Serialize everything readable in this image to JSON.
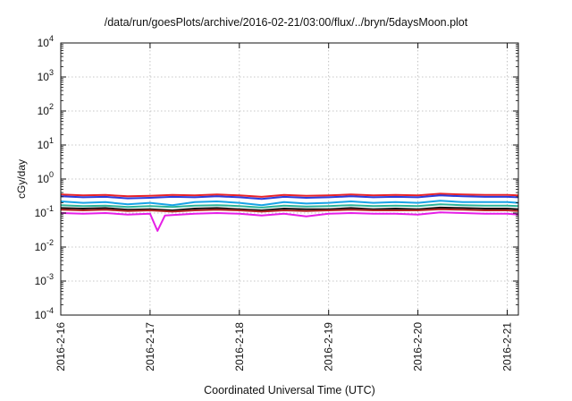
{
  "chart_data": {
    "type": "line",
    "title": "/data/run/goesPlots/archive/2016-02-21/03:00/flux/../bryn/5daysMoon.plot",
    "xlabel": "Coordinated Universal Time (UTC)",
    "ylabel": "cGy/day",
    "y_scale": "log",
    "ylim": [
      0.0001,
      10000
    ],
    "xlim": [
      "2016-02-16 00:00",
      "2016-02-21 03:00"
    ],
    "grid": true,
    "x_ticks": [
      "2016-2-16",
      "2016-2-17",
      "2016-2-18",
      "2016-2-19",
      "2016-2-20",
      "2016-2-21"
    ],
    "y_ticks": [
      {
        "value": 0.0001,
        "base": "10",
        "exp": "-4"
      },
      {
        "value": 0.001,
        "base": "10",
        "exp": "-3"
      },
      {
        "value": 0.01,
        "base": "10",
        "exp": "-2"
      },
      {
        "value": 0.1,
        "base": "10",
        "exp": "-1"
      },
      {
        "value": 1,
        "base": "10",
        "exp": "0"
      },
      {
        "value": 10,
        "base": "10",
        "exp": "1"
      },
      {
        "value": 100,
        "base": "10",
        "exp": "2"
      },
      {
        "value": 1000,
        "base": "10",
        "exp": "3"
      },
      {
        "value": 10000,
        "base": "10",
        "exp": "4"
      }
    ],
    "series": [
      {
        "color": "#e8232a",
        "values": [
          [
            "2016-02-16 00:00",
            0.35
          ],
          [
            "2016-02-16 06:00",
            0.33
          ],
          [
            "2016-02-16 12:00",
            0.34
          ],
          [
            "2016-02-16 18:00",
            0.31
          ],
          [
            "2016-02-17 00:00",
            0.32
          ],
          [
            "2016-02-17 06:00",
            0.34
          ],
          [
            "2016-02-17 12:00",
            0.33
          ],
          [
            "2016-02-17 18:00",
            0.35
          ],
          [
            "2016-02-18 00:00",
            0.33
          ],
          [
            "2016-02-18 06:00",
            0.3
          ],
          [
            "2016-02-18 12:00",
            0.34
          ],
          [
            "2016-02-18 18:00",
            0.32
          ],
          [
            "2016-02-19 00:00",
            0.33
          ],
          [
            "2016-02-19 06:00",
            0.35
          ],
          [
            "2016-02-19 12:00",
            0.33
          ],
          [
            "2016-02-19 18:00",
            0.34
          ],
          [
            "2016-02-20 00:00",
            0.33
          ],
          [
            "2016-02-20 06:00",
            0.37
          ],
          [
            "2016-02-20 12:00",
            0.35
          ],
          [
            "2016-02-20 18:00",
            0.34
          ],
          [
            "2016-02-21 00:00",
            0.34
          ],
          [
            "2016-02-21 03:00",
            0.33
          ]
        ]
      },
      {
        "color": "#2b3cdc",
        "values": [
          [
            "2016-02-16 00:00",
            0.31
          ],
          [
            "2016-02-16 06:00",
            0.29
          ],
          [
            "2016-02-16 12:00",
            0.3
          ],
          [
            "2016-02-16 18:00",
            0.27
          ],
          [
            "2016-02-17 00:00",
            0.28
          ],
          [
            "2016-02-17 06:00",
            0.3
          ],
          [
            "2016-02-17 12:00",
            0.29
          ],
          [
            "2016-02-17 18:00",
            0.31
          ],
          [
            "2016-02-18 00:00",
            0.29
          ],
          [
            "2016-02-18 06:00",
            0.26
          ],
          [
            "2016-02-18 12:00",
            0.3
          ],
          [
            "2016-02-18 18:00",
            0.28
          ],
          [
            "2016-02-19 00:00",
            0.29
          ],
          [
            "2016-02-19 06:00",
            0.31
          ],
          [
            "2016-02-19 12:00",
            0.29
          ],
          [
            "2016-02-19 18:00",
            0.3
          ],
          [
            "2016-02-20 00:00",
            0.29
          ],
          [
            "2016-02-20 06:00",
            0.33
          ],
          [
            "2016-02-20 12:00",
            0.31
          ],
          [
            "2016-02-20 18:00",
            0.3
          ],
          [
            "2016-02-21 00:00",
            0.3
          ],
          [
            "2016-02-21 03:00",
            0.29
          ]
        ]
      },
      {
        "color": "#19a3e6",
        "values": [
          [
            "2016-02-16 00:00",
            0.22
          ],
          [
            "2016-02-16 06:00",
            0.2
          ],
          [
            "2016-02-16 12:00",
            0.21
          ],
          [
            "2016-02-16 18:00",
            0.18
          ],
          [
            "2016-02-17 00:00",
            0.2
          ],
          [
            "2016-02-17 06:00",
            0.17
          ],
          [
            "2016-02-17 12:00",
            0.21
          ],
          [
            "2016-02-17 18:00",
            0.22
          ],
          [
            "2016-02-18 00:00",
            0.2
          ],
          [
            "2016-02-18 06:00",
            0.17
          ],
          [
            "2016-02-18 12:00",
            0.21
          ],
          [
            "2016-02-18 18:00",
            0.19
          ],
          [
            "2016-02-19 00:00",
            0.2
          ],
          [
            "2016-02-19 06:00",
            0.22
          ],
          [
            "2016-02-19 12:00",
            0.2
          ],
          [
            "2016-02-19 18:00",
            0.21
          ],
          [
            "2016-02-20 00:00",
            0.2
          ],
          [
            "2016-02-20 06:00",
            0.23
          ],
          [
            "2016-02-20 12:00",
            0.21
          ],
          [
            "2016-02-20 18:00",
            0.21
          ],
          [
            "2016-02-21 00:00",
            0.21
          ],
          [
            "2016-02-21 03:00",
            0.2
          ]
        ]
      },
      {
        "color": "#2bb39a",
        "values": [
          [
            "2016-02-16 00:00",
            0.17
          ],
          [
            "2016-02-16 06:00",
            0.16
          ],
          [
            "2016-02-16 12:00",
            0.165
          ],
          [
            "2016-02-16 18:00",
            0.15
          ],
          [
            "2016-02-17 00:00",
            0.16
          ],
          [
            "2016-02-17 06:00",
            0.15
          ],
          [
            "2016-02-17 12:00",
            0.165
          ],
          [
            "2016-02-17 18:00",
            0.17
          ],
          [
            "2016-02-18 00:00",
            0.16
          ],
          [
            "2016-02-18 06:00",
            0.145
          ],
          [
            "2016-02-18 12:00",
            0.165
          ],
          [
            "2016-02-18 18:00",
            0.155
          ],
          [
            "2016-02-19 00:00",
            0.16
          ],
          [
            "2016-02-19 06:00",
            0.17
          ],
          [
            "2016-02-19 12:00",
            0.16
          ],
          [
            "2016-02-19 18:00",
            0.165
          ],
          [
            "2016-02-20 00:00",
            0.16
          ],
          [
            "2016-02-20 06:00",
            0.18
          ],
          [
            "2016-02-20 12:00",
            0.17
          ],
          [
            "2016-02-20 18:00",
            0.165
          ],
          [
            "2016-02-21 00:00",
            0.165
          ],
          [
            "2016-02-21 03:00",
            0.16
          ]
        ]
      },
      {
        "color": "#111111",
        "values": [
          [
            "2016-02-16 00:00",
            0.14
          ],
          [
            "2016-02-16 06:00",
            0.135
          ],
          [
            "2016-02-16 12:00",
            0.14
          ],
          [
            "2016-02-16 18:00",
            0.125
          ],
          [
            "2016-02-17 00:00",
            0.13
          ],
          [
            "2016-02-17 06:00",
            0.12
          ],
          [
            "2016-02-17 12:00",
            0.135
          ],
          [
            "2016-02-17 18:00",
            0.14
          ],
          [
            "2016-02-18 00:00",
            0.13
          ],
          [
            "2016-02-18 06:00",
            0.12
          ],
          [
            "2016-02-18 12:00",
            0.135
          ],
          [
            "2016-02-18 18:00",
            0.13
          ],
          [
            "2016-02-19 00:00",
            0.13
          ],
          [
            "2016-02-19 06:00",
            0.14
          ],
          [
            "2016-02-19 12:00",
            0.13
          ],
          [
            "2016-02-19 18:00",
            0.135
          ],
          [
            "2016-02-20 00:00",
            0.13
          ],
          [
            "2016-02-20 06:00",
            0.145
          ],
          [
            "2016-02-20 12:00",
            0.14
          ],
          [
            "2016-02-20 18:00",
            0.135
          ],
          [
            "2016-02-21 00:00",
            0.135
          ],
          [
            "2016-02-21 03:00",
            0.13
          ]
        ]
      },
      {
        "color": "#b52424",
        "values": [
          [
            "2016-02-16 00:00",
            0.125
          ],
          [
            "2016-02-16 06:00",
            0.12
          ],
          [
            "2016-02-16 12:00",
            0.125
          ],
          [
            "2016-02-16 18:00",
            0.115
          ],
          [
            "2016-02-17 00:00",
            0.12
          ],
          [
            "2016-02-17 06:00",
            0.11
          ],
          [
            "2016-02-17 12:00",
            0.12
          ],
          [
            "2016-02-17 18:00",
            0.125
          ],
          [
            "2016-02-18 00:00",
            0.12
          ],
          [
            "2016-02-18 06:00",
            0.11
          ],
          [
            "2016-02-18 12:00",
            0.12
          ],
          [
            "2016-02-18 18:00",
            0.115
          ],
          [
            "2016-02-19 00:00",
            0.12
          ],
          [
            "2016-02-19 06:00",
            0.125
          ],
          [
            "2016-02-19 12:00",
            0.12
          ],
          [
            "2016-02-19 18:00",
            0.12
          ],
          [
            "2016-02-20 00:00",
            0.12
          ],
          [
            "2016-02-20 06:00",
            0.13
          ],
          [
            "2016-02-20 12:00",
            0.125
          ],
          [
            "2016-02-20 18:00",
            0.12
          ],
          [
            "2016-02-21 00:00",
            0.12
          ],
          [
            "2016-02-21 03:00",
            0.115
          ]
        ]
      },
      {
        "color": "#e61ee6",
        "values": [
          [
            "2016-02-16 00:00",
            0.1
          ],
          [
            "2016-02-16 06:00",
            0.095
          ],
          [
            "2016-02-16 12:00",
            0.1
          ],
          [
            "2016-02-16 18:00",
            0.09
          ],
          [
            "2016-02-17 00:00",
            0.095
          ],
          [
            "2016-02-17 02:00",
            0.03
          ],
          [
            "2016-02-17 04:00",
            0.085
          ],
          [
            "2016-02-17 12:00",
            0.095
          ],
          [
            "2016-02-17 18:00",
            0.1
          ],
          [
            "2016-02-18 00:00",
            0.095
          ],
          [
            "2016-02-18 06:00",
            0.085
          ],
          [
            "2016-02-18 12:00",
            0.095
          ],
          [
            "2016-02-18 18:00",
            0.08
          ],
          [
            "2016-02-19 00:00",
            0.095
          ],
          [
            "2016-02-19 06:00",
            0.1
          ],
          [
            "2016-02-19 12:00",
            0.095
          ],
          [
            "2016-02-19 18:00",
            0.095
          ],
          [
            "2016-02-20 00:00",
            0.09
          ],
          [
            "2016-02-20 06:00",
            0.105
          ],
          [
            "2016-02-20 12:00",
            0.1
          ],
          [
            "2016-02-20 18:00",
            0.095
          ],
          [
            "2016-02-21 00:00",
            0.095
          ],
          [
            "2016-02-21 03:00",
            0.09
          ]
        ]
      }
    ]
  }
}
